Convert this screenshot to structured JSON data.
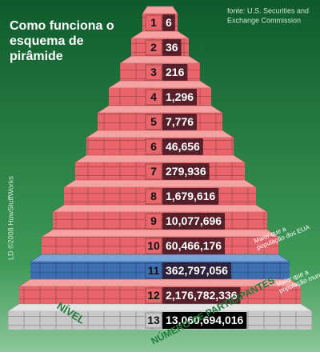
{
  "header": {
    "title_lines": [
      "Como funciona o",
      "esquema de",
      "pirâmide"
    ],
    "source_lines": [
      "fonte: U.S. Securities and",
      "Exchange Commission"
    ],
    "credit": "LD ©2008 HowStuffWorks"
  },
  "levels": [
    {
      "level": "1",
      "participants": "6"
    },
    {
      "level": "2",
      "participants": "36"
    },
    {
      "level": "3",
      "participants": "216"
    },
    {
      "level": "4",
      "participants": "1,296"
    },
    {
      "level": "5",
      "participants": "7,776"
    },
    {
      "level": "6",
      "participants": "46,656"
    },
    {
      "level": "7",
      "participants": "279,936"
    },
    {
      "level": "8",
      "participants": "1,679,616"
    },
    {
      "level": "9",
      "participants": "10,077,696"
    },
    {
      "level": "10",
      "participants": "60,466,176"
    },
    {
      "level": "11",
      "participants": "362,797,056"
    },
    {
      "level": "12",
      "participants": "2,176,782,336"
    },
    {
      "level": "13",
      "participants": "13,060,694,016"
    }
  ],
  "annotations": [
    {
      "lines": [
        "Maior que a",
        "população dos EUA"
      ]
    },
    {
      "lines": [
        "Maior que a",
        "população mundial"
      ]
    }
  ],
  "axis_labels": {
    "level": "NÍVEL",
    "participants": "NÚMERO DE PARTICIPANTES"
  }
}
